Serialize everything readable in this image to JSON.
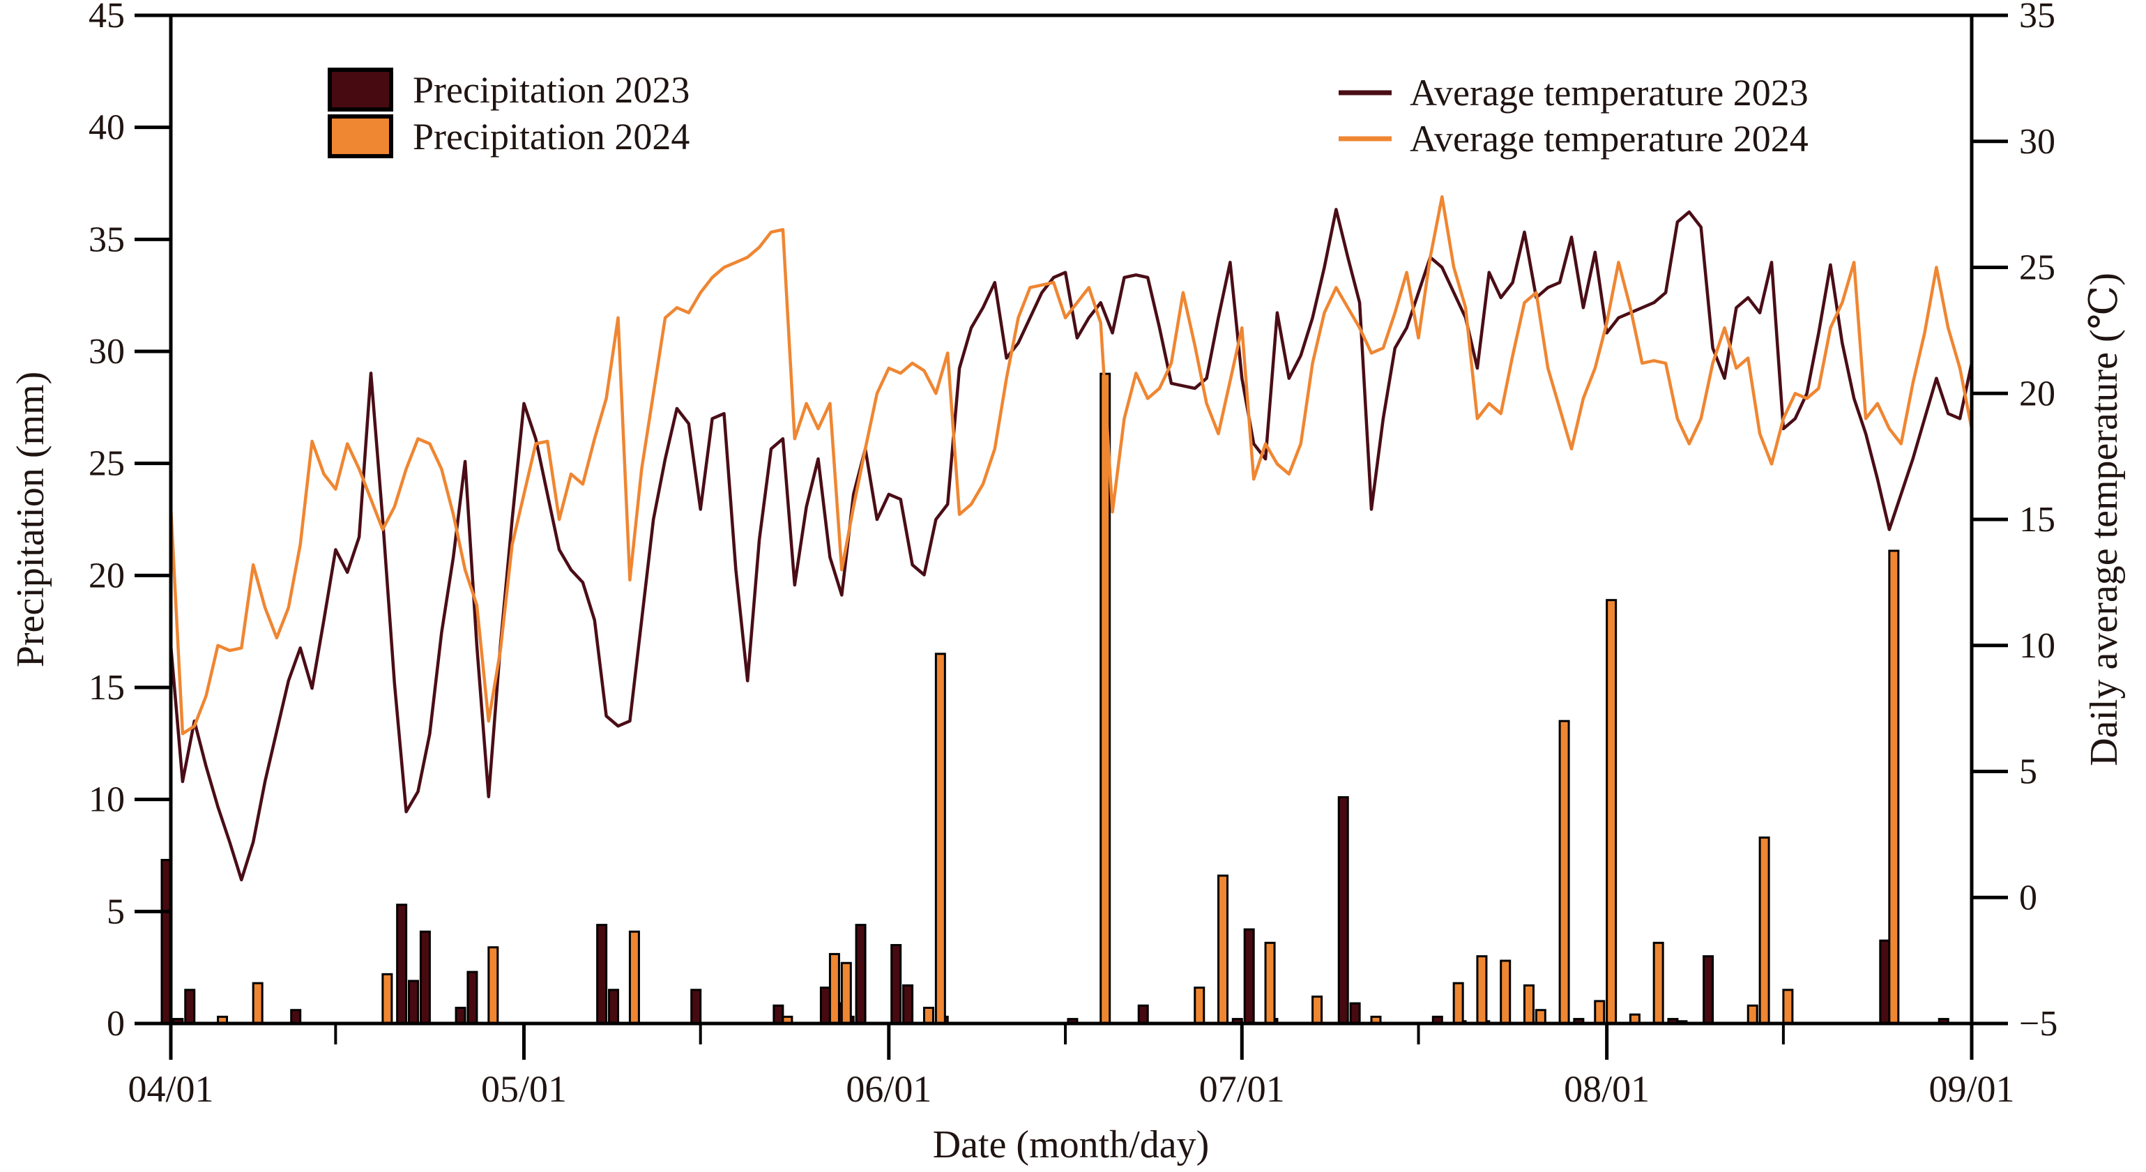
{
  "figure": {
    "background": "#ffffff",
    "axis_color": "#000000",
    "text_color": "#1f1411",
    "x_axis_title": "Date (month/day)",
    "left_axis_title": "Precipitation (mm)",
    "right_axis_title": "Daily average temperature (℃)",
    "legend_bars": [
      {
        "label": "Precipitation 2023",
        "color": "#470a10"
      },
      {
        "label": "Precipitation 2024",
        "color": "#ef8632"
      }
    ],
    "legend_lines": [
      {
        "label": "Average temperature 2023",
        "color": "#4a0d16"
      },
      {
        "label": "Average temperature 2024",
        "color": "#ef8632"
      }
    ]
  },
  "chart_data": {
    "type": "bar+line",
    "title": "",
    "xlabel": "Date (month/day)",
    "x_axis": {
      "start": "04/01",
      "end": "09/01",
      "total_days": 153,
      "major_ticks": [
        "04/01",
        "05/01",
        "06/01",
        "07/01",
        "08/01",
        "09/01"
      ],
      "minor_tick_dates": [
        "04/15",
        "05/16",
        "06/16",
        "07/16",
        "08/16"
      ]
    },
    "left_axis": {
      "label": "Precipitation (mm)",
      "min": 0,
      "max": 45,
      "step": 5,
      "tick_labels": [
        "0",
        "5",
        "10",
        "15",
        "20",
        "25",
        "30",
        "35",
        "40",
        "45"
      ]
    },
    "right_axis": {
      "label": "Daily average temperature (℃)",
      "min": -5,
      "max": 35,
      "step": 5,
      "tick_labels": [
        "−5",
        "0",
        "5",
        "10",
        "15",
        "20",
        "25",
        "30",
        "35"
      ]
    },
    "grid": false,
    "series": [
      {
        "id": "precip2023",
        "name": "Precipitation 2023",
        "type": "bar",
        "axis": "left",
        "color": "#470a10",
        "outline": "#000000",
        "data": [
          [
            "04/01",
            7.3
          ],
          [
            "04/02",
            0.2
          ],
          [
            "04/03",
            1.5
          ],
          [
            "04/12",
            0.6
          ],
          [
            "04/21",
            5.3
          ],
          [
            "04/22",
            1.9
          ],
          [
            "04/23",
            4.1
          ],
          [
            "04/26",
            0.7
          ],
          [
            "04/27",
            2.3
          ],
          [
            "05/08",
            4.4
          ],
          [
            "05/09",
            1.5
          ],
          [
            "05/16",
            1.5
          ],
          [
            "05/23",
            0.8
          ],
          [
            "05/27",
            1.6
          ],
          [
            "05/28",
            0.9
          ],
          [
            "05/29",
            0.3
          ],
          [
            "05/30",
            4.4
          ],
          [
            "06/02",
            3.5
          ],
          [
            "06/03",
            1.7
          ],
          [
            "06/06",
            0.3
          ],
          [
            "06/17",
            0.2
          ],
          [
            "06/23",
            0.8
          ],
          [
            "07/01",
            0.2
          ],
          [
            "07/02",
            4.2
          ],
          [
            "07/04",
            0.2
          ],
          [
            "07/10",
            10.1
          ],
          [
            "07/11",
            0.9
          ],
          [
            "07/18",
            0.3
          ],
          [
            "07/20",
            0.1
          ],
          [
            "07/22",
            0.1
          ],
          [
            "07/30",
            0.2
          ],
          [
            "08/07",
            0.2
          ],
          [
            "08/10",
            3.0
          ],
          [
            "08/25",
            3.7
          ],
          [
            "08/30",
            0.2
          ]
        ]
      },
      {
        "id": "precip2024",
        "name": "Precipitation 2024",
        "type": "bar",
        "axis": "left",
        "color": "#ef8632",
        "outline": "#000000",
        "data": [
          [
            "04/05",
            0.3
          ],
          [
            "04/08",
            1.8
          ],
          [
            "04/19",
            2.2
          ],
          [
            "04/28",
            3.4
          ],
          [
            "05/10",
            4.1
          ],
          [
            "05/23",
            0.3
          ],
          [
            "05/27",
            3.1
          ],
          [
            "05/28",
            2.7
          ],
          [
            "06/04",
            0.7
          ],
          [
            "06/05",
            16.5
          ],
          [
            "06/19",
            29.0
          ],
          [
            "06/27",
            1.6
          ],
          [
            "06/29",
            6.6
          ],
          [
            "07/03",
            3.6
          ],
          [
            "07/07",
            1.2
          ],
          [
            "07/12",
            0.3
          ],
          [
            "07/19",
            1.8
          ],
          [
            "07/21",
            3.0
          ],
          [
            "07/23",
            2.8
          ],
          [
            "07/25",
            1.7
          ],
          [
            "07/26",
            0.6
          ],
          [
            "07/28",
            13.5
          ],
          [
            "07/31",
            1.0
          ],
          [
            "08/01",
            18.9
          ],
          [
            "08/03",
            0.4
          ],
          [
            "08/05",
            3.6
          ],
          [
            "08/07",
            0.1
          ],
          [
            "08/13",
            0.8
          ],
          [
            "08/14",
            8.3
          ],
          [
            "08/16",
            1.5
          ],
          [
            "08/25",
            21.1
          ]
        ]
      },
      {
        "id": "temp2023",
        "name": "Average temperature 2023",
        "type": "line",
        "axis": "right",
        "color": "#4a0d16",
        "start": "04/01",
        "step_days": 1,
        "values": [
          10.0,
          4.6,
          7.0,
          5.2,
          3.6,
          2.2,
          0.7,
          2.2,
          4.6,
          6.6,
          8.6,
          9.9,
          8.3,
          11.0,
          13.8,
          12.9,
          14.3,
          20.8,
          15.0,
          8.5,
          3.4,
          4.2,
          6.5,
          10.5,
          13.5,
          17.3,
          10.0,
          4.0,
          10.0,
          15.0,
          19.6,
          18.2,
          16.0,
          13.8,
          13.0,
          12.5,
          11.0,
          7.2,
          6.8,
          7.0,
          11.0,
          15.0,
          17.4,
          19.4,
          18.8,
          15.4,
          19.0,
          19.2,
          13.0,
          8.6,
          14.2,
          17.8,
          18.2,
          12.4,
          15.5,
          17.4,
          13.5,
          12.0,
          16.0,
          17.8,
          15.0,
          16.0,
          15.8,
          13.2,
          12.8,
          15.0,
          15.6,
          21.0,
          22.6,
          23.4,
          24.4,
          21.4,
          22.0,
          23.0,
          24.0,
          24.6,
          24.8,
          22.2,
          23.0,
          23.6,
          22.4,
          24.6,
          24.7,
          24.6,
          22.6,
          20.4,
          20.3,
          20.2,
          20.6,
          23.0,
          25.2,
          20.6,
          18.0,
          17.4,
          23.2,
          20.6,
          21.5,
          23.0,
          25.0,
          27.3,
          25.4,
          23.6,
          15.4,
          19.0,
          21.8,
          22.6,
          24.0,
          25.4,
          25.0,
          24.0,
          23.0,
          21.0,
          24.8,
          23.8,
          24.4,
          26.4,
          23.8,
          24.2,
          24.4,
          26.2,
          23.4,
          25.6,
          22.4,
          23.0,
          23.2,
          23.4,
          23.6,
          24.0,
          26.8,
          27.2,
          26.6,
          21.8,
          20.6,
          23.4,
          23.8,
          23.2,
          25.2,
          18.6,
          19.0,
          20.0,
          22.4,
          25.1,
          22.0,
          19.8,
          18.4,
          16.6,
          14.6,
          16.0,
          17.4,
          19.0,
          20.6,
          19.2,
          19.0,
          21.2
        ]
      },
      {
        "id": "temp2024",
        "name": "Average temperature 2024",
        "type": "line",
        "axis": "right",
        "color": "#ef8632",
        "start": "04/01",
        "step_days": 1,
        "values": [
          15.5,
          6.5,
          6.8,
          8.0,
          10.0,
          9.8,
          9.9,
          13.2,
          11.5,
          10.3,
          11.5,
          14.0,
          18.1,
          16.8,
          16.2,
          18.0,
          17.0,
          15.8,
          14.6,
          15.5,
          17.0,
          18.2,
          18.0,
          17.0,
          15.2,
          13.0,
          11.6,
          7.0,
          9.8,
          14.0,
          16.0,
          18.0,
          18.1,
          15.0,
          16.8,
          16.4,
          18.2,
          19.8,
          23.0,
          12.6,
          17.0,
          20.0,
          23.0,
          23.4,
          23.2,
          24.0,
          24.6,
          25.0,
          25.2,
          25.4,
          25.8,
          26.4,
          26.5,
          18.2,
          19.6,
          18.6,
          19.6,
          13.0,
          15.5,
          17.8,
          20.0,
          21.0,
          20.8,
          21.2,
          20.9,
          20.0,
          21.6,
          15.2,
          15.6,
          16.4,
          17.8,
          20.6,
          23.0,
          24.2,
          24.3,
          24.4,
          23.0,
          23.6,
          24.2,
          22.8,
          15.3,
          19.0,
          20.8,
          19.8,
          20.2,
          21.2,
          24.0,
          21.9,
          19.6,
          18.4,
          20.5,
          22.6,
          16.6,
          18.0,
          17.2,
          16.8,
          18.0,
          21.2,
          23.2,
          24.2,
          23.4,
          22.6,
          21.6,
          21.8,
          23.2,
          24.8,
          22.2,
          25.4,
          27.8,
          25.0,
          23.4,
          19.0,
          19.6,
          19.2,
          21.5,
          23.6,
          24.0,
          21.0,
          19.4,
          17.8,
          19.8,
          21.0,
          22.8,
          25.2,
          23.4,
          21.2,
          21.3,
          21.2,
          19.0,
          18.0,
          19.0,
          21.2,
          22.6,
          21.0,
          21.4,
          18.4,
          17.2,
          19.0,
          20.0,
          19.8,
          20.2,
          22.6,
          23.6,
          25.2,
          19.0,
          19.6,
          18.6,
          18.0,
          20.4,
          22.4,
          25.0,
          22.6,
          21.0,
          18.6
        ]
      }
    ]
  }
}
